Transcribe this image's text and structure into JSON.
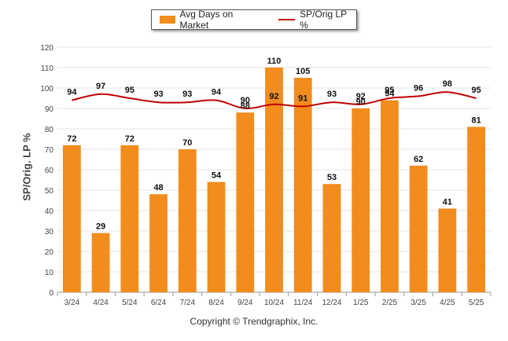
{
  "chart_data": {
    "type": "bar",
    "categories": [
      "3/24",
      "4/24",
      "5/24",
      "6/24",
      "7/24",
      "8/24",
      "9/24",
      "10/24",
      "11/24",
      "12/24",
      "1/25",
      "2/25",
      "3/25",
      "4/25",
      "5/25"
    ],
    "series": [
      {
        "name": "Avg Days on Market",
        "type": "bar",
        "color": "#F28C1C",
        "values": [
          72,
          29,
          72,
          48,
          70,
          54,
          88,
          110,
          105,
          53,
          90,
          94,
          62,
          41,
          81
        ]
      },
      {
        "name": "SP/Orig LP %",
        "type": "line",
        "color": "#C00000",
        "values": [
          94,
          97,
          95,
          93,
          93,
          94,
          90,
          92,
          91,
          93,
          92,
          95,
          96,
          98,
          95
        ]
      }
    ],
    "ylabel": "SP/Orig. LP %",
    "ylim": [
      0,
      120
    ],
    "yticks": [
      0,
      10,
      20,
      30,
      40,
      50,
      60,
      70,
      80,
      90,
      100,
      110,
      120
    ],
    "grid": true,
    "legend": "top-center"
  },
  "footer": "Copyright © Trendgraphix, Inc."
}
